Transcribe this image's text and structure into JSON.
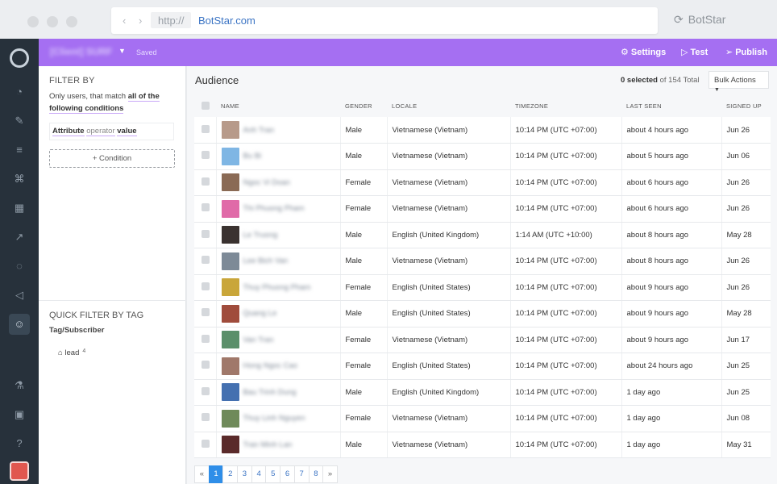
{
  "browser": {
    "protocol": "http://",
    "host": "BotStar.com",
    "tab_title": "BotStar"
  },
  "topbar": {
    "project_name": "[Client] SURF",
    "saved_label": "Saved",
    "settings_label": "Settings",
    "test_label": "Test",
    "publish_label": "Publish"
  },
  "filter": {
    "heading": "FILTER BY",
    "desc_prefix": "Only users, that match ",
    "desc_strong": "all of the following conditions",
    "attr_attribute": "Attribute",
    "attr_operator": "operator",
    "attr_value": "value",
    "condition_button": "+ Condition",
    "quick_heading": "QUICK FILTER BY TAG",
    "tag_group": "Tag/Subscriber",
    "tag_name": "lead",
    "tag_count": "4"
  },
  "audience": {
    "title": "Audience",
    "selected": "0 selected",
    "total": " of 154 Total",
    "bulk_actions": "Bulk Actions",
    "columns": [
      "NAME",
      "GENDER",
      "LOCALE",
      "TIMEZONE",
      "LAST SEEN",
      "SIGNED UP"
    ],
    "rows": [
      {
        "name": "Anh Tran",
        "gender": "Male",
        "locale": "Vietnamese (Vietnam)",
        "timezone": "10:14 PM (UTC +07:00)",
        "last_seen": "about 4 hours ago",
        "signed_up": "Jun 26",
        "thumb": "#b79a8a"
      },
      {
        "name": "Bu Bi",
        "gender": "Male",
        "locale": "Vietnamese (Vietnam)",
        "timezone": "10:14 PM (UTC +07:00)",
        "last_seen": "about 5 hours ago",
        "signed_up": "Jun 06",
        "thumb": "#7fb6e4"
      },
      {
        "name": "Ngoc Vi Doan",
        "gender": "Female",
        "locale": "Vietnamese (Vietnam)",
        "timezone": "10:14 PM (UTC +07:00)",
        "last_seen": "about 6 hours ago",
        "signed_up": "Jun 26",
        "thumb": "#8a6a55"
      },
      {
        "name": "Thi Phuong Pham",
        "gender": "Female",
        "locale": "Vietnamese (Vietnam)",
        "timezone": "10:14 PM (UTC +07:00)",
        "last_seen": "about 6 hours ago",
        "signed_up": "Jun 26",
        "thumb": "#e06aa8"
      },
      {
        "name": "Le Truong",
        "gender": "Male",
        "locale": "English (United Kingdom)",
        "timezone": "1:14 AM (UTC +10:00)",
        "last_seen": "about 8 hours ago",
        "signed_up": "May 28",
        "thumb": "#3a3230"
      },
      {
        "name": "Lee Bich Van",
        "gender": "Male",
        "locale": "Vietnamese (Vietnam)",
        "timezone": "10:14 PM (UTC +07:00)",
        "last_seen": "about 8 hours ago",
        "signed_up": "Jun 26",
        "thumb": "#7d8a97"
      },
      {
        "name": "Thuy Phuong Pham",
        "gender": "Female",
        "locale": "English (United States)",
        "timezone": "10:14 PM (UTC +07:00)",
        "last_seen": "about 9 hours ago",
        "signed_up": "Jun 26",
        "thumb": "#c9a63a"
      },
      {
        "name": "Quang Le",
        "gender": "Male",
        "locale": "English (United States)",
        "timezone": "10:14 PM (UTC +07:00)",
        "last_seen": "about 9 hours ago",
        "signed_up": "May 28",
        "thumb": "#a04c3c"
      },
      {
        "name": "Van Tran",
        "gender": "Female",
        "locale": "Vietnamese (Vietnam)",
        "timezone": "10:14 PM (UTC +07:00)",
        "last_seen": "about 9 hours ago",
        "signed_up": "Jun 17",
        "thumb": "#5b8f6a"
      },
      {
        "name": "Hong Ngoc Cao",
        "gender": "Female",
        "locale": "English (United States)",
        "timezone": "10:14 PM (UTC +07:00)",
        "last_seen": "about 24 hours ago",
        "signed_up": "Jun 25",
        "thumb": "#a0786a"
      },
      {
        "name": "Bau Trinh Dung",
        "gender": "Male",
        "locale": "English (United Kingdom)",
        "timezone": "10:14 PM (UTC +07:00)",
        "last_seen": "1 day ago",
        "signed_up": "Jun 25",
        "thumb": "#4470b0"
      },
      {
        "name": "Thuy Linh Nguyen",
        "gender": "Female",
        "locale": "Vietnamese (Vietnam)",
        "timezone": "10:14 PM (UTC +07:00)",
        "last_seen": "1 day ago",
        "signed_up": "Jun 08",
        "thumb": "#6f8a5a"
      },
      {
        "name": "Tran Minh Lan",
        "gender": "Male",
        "locale": "Vietnamese (Vietnam)",
        "timezone": "10:14 PM (UTC +07:00)",
        "last_seen": "1 day ago",
        "signed_up": "May 31",
        "thumb": "#5a2a2a"
      }
    ]
  },
  "pagination": {
    "prev": "«",
    "pages": [
      "1",
      "2",
      "3",
      "4",
      "5",
      "6",
      "7",
      "8"
    ],
    "next": "»",
    "active": "1"
  },
  "sidebar_icons": [
    "dashboard-icon",
    "flows-icon",
    "database-icon",
    "cms-icon",
    "broadcast-icon",
    "analytics-icon",
    "livechat-icon",
    "announce-icon",
    "audience-icon",
    "lab-icon",
    "settings-card-icon",
    "help-icon"
  ]
}
